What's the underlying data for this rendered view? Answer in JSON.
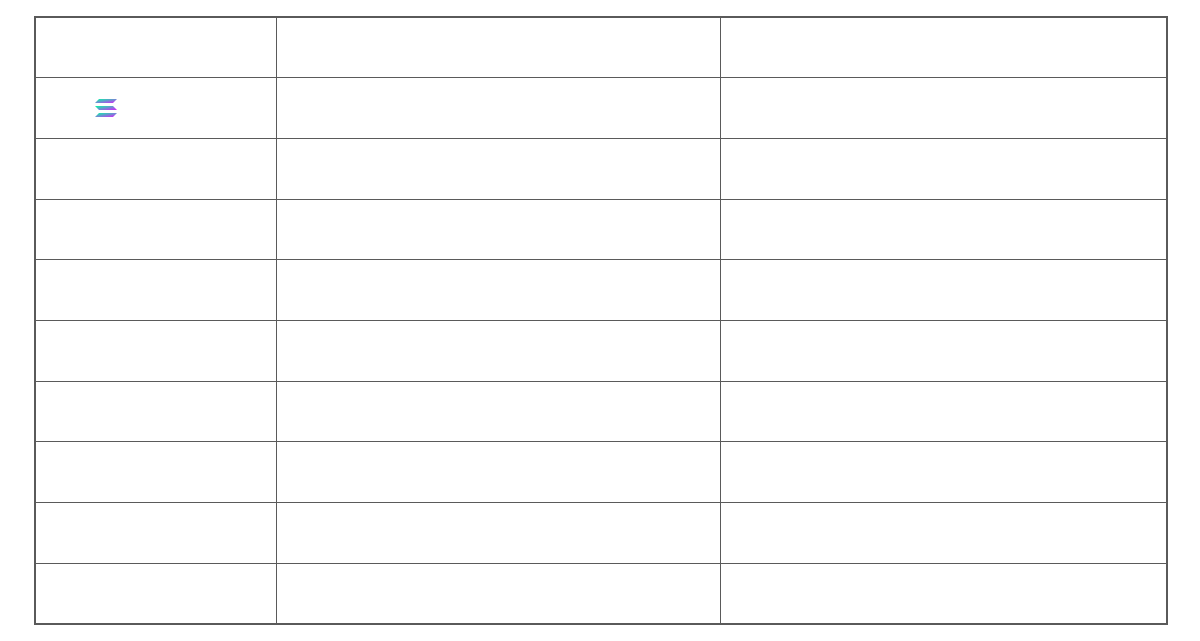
{
  "table": {
    "rows": [
      {
        "cells": [
          "",
          "",
          ""
        ]
      },
      {
        "cells": [
          "",
          "",
          ""
        ],
        "icon": "solana-logo-icon"
      },
      {
        "cells": [
          "",
          "",
          ""
        ]
      },
      {
        "cells": [
          "",
          "",
          ""
        ]
      },
      {
        "cells": [
          "",
          "",
          ""
        ]
      },
      {
        "cells": [
          "",
          "",
          ""
        ]
      },
      {
        "cells": [
          "",
          "",
          ""
        ]
      },
      {
        "cells": [
          "",
          "",
          ""
        ]
      },
      {
        "cells": [
          "",
          "",
          ""
        ]
      },
      {
        "cells": [
          "",
          "",
          ""
        ]
      }
    ]
  },
  "colors": {
    "border": "#5a5a5a",
    "background": "#ffffff",
    "logo_gradient_start": "#00ffa3",
    "logo_gradient_end": "#dc1fff"
  }
}
